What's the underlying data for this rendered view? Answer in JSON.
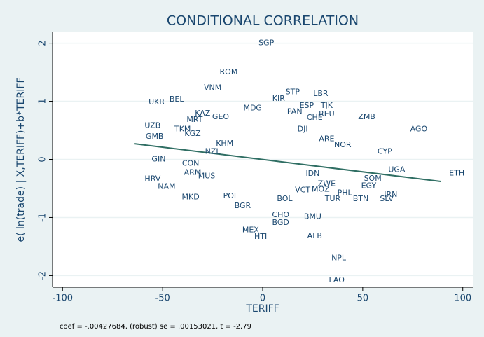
{
  "chart_data": {
    "type": "scatter",
    "title": "CONDITIONAL CORRELATION",
    "x_label": "TERIFF",
    "y_label": "e( ln(trade) | X,TERIFF)+b*TERIFF",
    "note": "coef = -.00427684, (robust) se = .00153021, t = -2.79",
    "xlim": [
      -105,
      105
    ],
    "ylim": [
      -2.2,
      2.2
    ],
    "xticks": [
      -100,
      -50,
      0,
      50,
      100
    ],
    "yticks": [
      -2,
      -1,
      0,
      1,
      2
    ],
    "grid": true,
    "color": "#1a476f",
    "points": {
      "labels": [
        "SGP",
        "ROM",
        "VNM",
        "BEL",
        "UKR",
        "STP",
        "LBR",
        "KIR",
        "ESP",
        "TJK",
        "MDG",
        "KAZ",
        "MRT",
        "GEO",
        "CHE",
        "REU",
        "ZMB",
        "AGO",
        "UZB",
        "TKM",
        "KGZ",
        "GMB",
        "DJI",
        "CYP",
        "GIN",
        "CON",
        "NZL",
        "KHM",
        "HRV",
        "NAM",
        "MKD",
        "ARM",
        "POL",
        "BGR",
        "UGA",
        "ETH",
        "SOM",
        "EGY",
        "IRN",
        "SLV",
        "PHL",
        "BTN",
        "TUR",
        "ZWE",
        "MOZ",
        "VCT",
        "IDN",
        "BMU",
        "CHO",
        "MEX",
        "HTI",
        "ALB",
        "NPL",
        "LAO",
        "MUS",
        "BGD",
        "BOL",
        "PAN",
        "ARE",
        "NOR"
      ],
      "x": [
        1.8,
        -17,
        -25,
        -43,
        -53,
        15,
        29,
        8,
        22,
        32,
        -5,
        -30,
        -34,
        -21,
        26,
        32,
        52,
        78,
        -55,
        -40,
        -35,
        -54,
        20,
        61,
        -52,
        -36,
        -25,
        -19,
        -55,
        -48,
        -36,
        -35,
        -16,
        -10,
        67,
        97,
        55,
        53,
        64,
        62,
        41,
        49,
        35,
        32,
        29,
        20,
        25,
        25,
        9,
        -6,
        -1,
        26,
        38,
        37,
        -28,
        9,
        11,
        16,
        32,
        40
      ],
      "y": [
        2.0,
        1.5,
        1.23,
        1.03,
        0.98,
        1.16,
        1.13,
        1.04,
        0.92,
        0.92,
        0.88,
        0.79,
        0.68,
        0.73,
        0.72,
        0.78,
        0.73,
        0.52,
        0.58,
        0.52,
        0.44,
        0.39,
        0.52,
        0.13,
        0,
        -0.07,
        0.13,
        0.27,
        -0.34,
        -0.47,
        -0.65,
        -0.23,
        -0.63,
        -0.8,
        -0.18,
        -0.24,
        -0.33,
        -0.46,
        -0.61,
        -0.68,
        -0.58,
        -0.68,
        -0.68,
        -0.42,
        -0.52,
        -0.53,
        -0.25,
        -0.99,
        -0.96,
        -1.22,
        -1.33,
        -1.32,
        -1.7,
        -2.08,
        -0.29,
        -1.09,
        -0.68,
        0.82,
        0.35,
        0.25
      ]
    },
    "fit": {
      "color": "#2f6e63",
      "x": [
        -64,
        89
      ],
      "y": [
        0.27,
        -0.38
      ]
    }
  }
}
